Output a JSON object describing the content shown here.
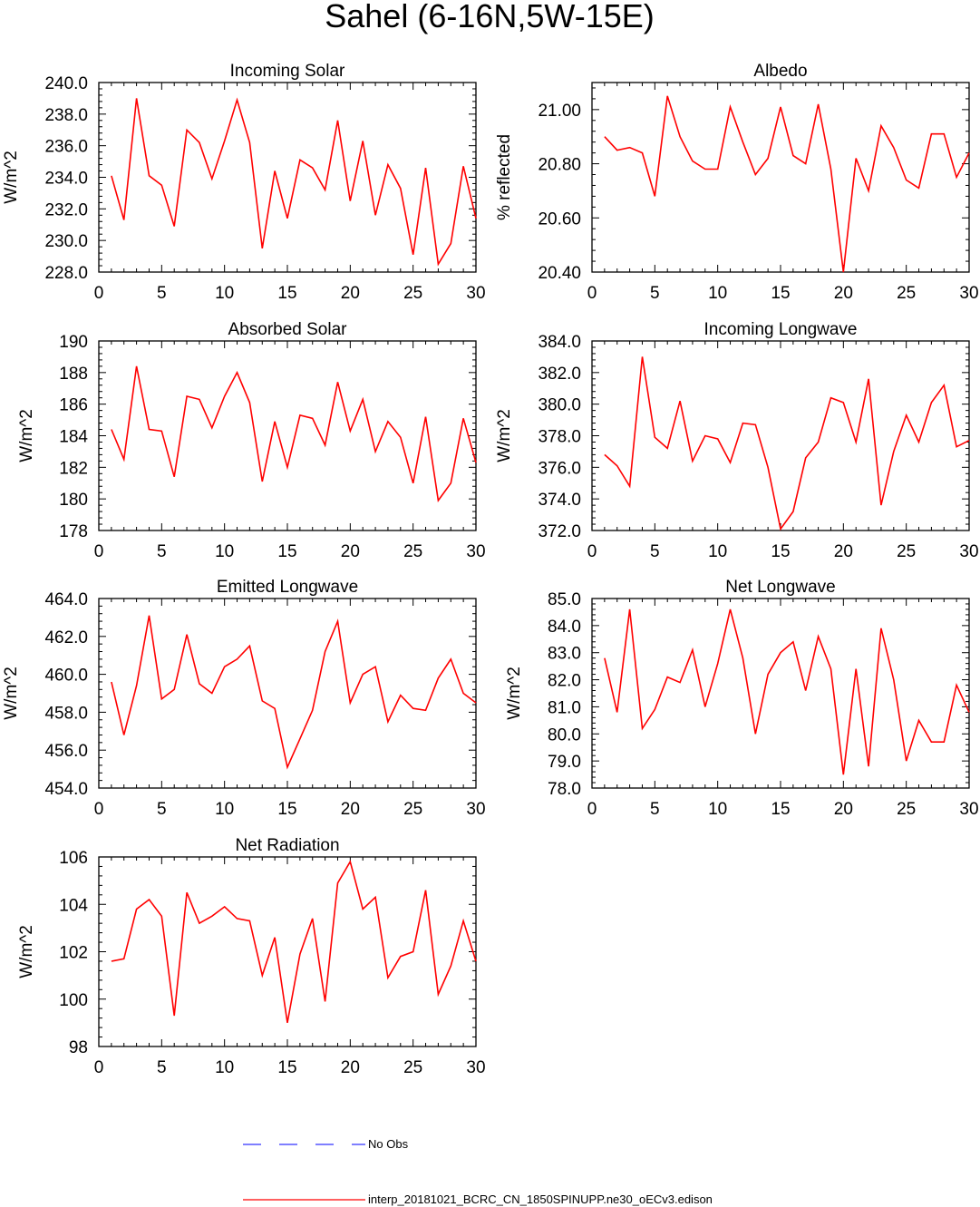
{
  "figure": {
    "title": "Sahel (6-16N,5W-15E)",
    "legend": [
      {
        "label": "No Obs",
        "color": "#3333ff",
        "style": "dashed"
      },
      {
        "label": "interp_20181021_BCRC_CN_1850SPINUPP.ne30_oECv3.edison",
        "color": "#ff0000",
        "style": "solid"
      }
    ]
  },
  "chart_data": [
    {
      "type": "line",
      "title": "Incoming Solar",
      "ylabel": "W/m^2",
      "xlim": [
        0,
        30
      ],
      "ylim": [
        228,
        240
      ],
      "xticks": [
        0,
        5,
        10,
        15,
        20,
        25,
        30
      ],
      "yticks": [
        "228.0",
        "230.0",
        "232.0",
        "234.0",
        "236.0",
        "238.0",
        "240.0"
      ],
      "series": [
        {
          "name": "interp_20181021_BCRC_CN_1850SPINUPP.ne30_oECv3.edison",
          "color": "#ff0000",
          "x": [
            1,
            2,
            3,
            4,
            5,
            6,
            7,
            8,
            9,
            10,
            11,
            12,
            13,
            14,
            15,
            16,
            17,
            18,
            19,
            20,
            21,
            22,
            23,
            24,
            25,
            26,
            27,
            28,
            29,
            30
          ],
          "values": [
            234.1,
            231.3,
            239.0,
            234.1,
            233.5,
            230.9,
            237.0,
            236.2,
            233.9,
            236.3,
            238.9,
            236.2,
            229.5,
            234.4,
            231.4,
            235.1,
            234.6,
            233.2,
            237.6,
            232.5,
            236.3,
            231.6,
            234.8,
            233.3,
            229.1,
            234.6,
            228.5,
            229.8,
            234.7,
            231.4
          ]
        }
      ]
    },
    {
      "type": "line",
      "title": "Albedo",
      "ylabel": "% reflected",
      "xlim": [
        0,
        30
      ],
      "ylim": [
        20.4,
        21.1
      ],
      "xticks": [
        0,
        5,
        10,
        15,
        20,
        25,
        30
      ],
      "yticks": [
        "20.40",
        "20.60",
        "20.80",
        "21.00"
      ],
      "series": [
        {
          "name": "interp_20181021_BCRC_CN_1850SPINUPP.ne30_oECv3.edison",
          "color": "#ff0000",
          "x": [
            1,
            2,
            3,
            4,
            5,
            6,
            7,
            8,
            9,
            10,
            11,
            12,
            13,
            14,
            15,
            16,
            17,
            18,
            19,
            20,
            21,
            22,
            23,
            24,
            25,
            26,
            27,
            28,
            29,
            30
          ],
          "values": [
            20.9,
            20.85,
            20.86,
            20.84,
            20.68,
            21.05,
            20.9,
            20.81,
            20.78,
            20.78,
            21.01,
            20.88,
            20.76,
            20.82,
            21.01,
            20.83,
            20.8,
            21.02,
            20.78,
            20.4,
            20.82,
            20.7,
            20.94,
            20.86,
            20.74,
            20.71,
            20.91,
            20.91,
            20.75,
            20.84
          ]
        }
      ]
    },
    {
      "type": "line",
      "title": "Absorbed Solar",
      "ylabel": "W/m^2",
      "xlim": [
        0,
        30
      ],
      "ylim": [
        178,
        190
      ],
      "xticks": [
        0,
        5,
        10,
        15,
        20,
        25,
        30
      ],
      "yticks": [
        "178",
        "180",
        "182",
        "184",
        "186",
        "188",
        "190"
      ],
      "series": [
        {
          "name": "interp_20181021_BCRC_CN_1850SPINUPP.ne30_oECv3.edison",
          "color": "#ff0000",
          "x": [
            1,
            2,
            3,
            4,
            5,
            6,
            7,
            8,
            9,
            10,
            11,
            12,
            13,
            14,
            15,
            16,
            17,
            18,
            19,
            20,
            21,
            22,
            23,
            24,
            25,
            26,
            27,
            28,
            29,
            30
          ],
          "values": [
            184.4,
            182.5,
            188.4,
            184.4,
            184.3,
            181.4,
            186.5,
            186.3,
            184.5,
            186.5,
            188.0,
            186.1,
            181.1,
            184.9,
            182.0,
            185.3,
            185.1,
            183.4,
            187.4,
            184.3,
            186.3,
            183.0,
            184.9,
            183.9,
            181.0,
            185.2,
            179.9,
            181.0,
            185.1,
            182.3
          ]
        }
      ]
    },
    {
      "type": "line",
      "title": "Incoming Longwave",
      "ylabel": "W/m^2",
      "xlim": [
        0,
        30
      ],
      "ylim": [
        372,
        384
      ],
      "xticks": [
        0,
        5,
        10,
        15,
        20,
        25,
        30
      ],
      "yticks": [
        "372.0",
        "374.0",
        "376.0",
        "378.0",
        "380.0",
        "382.0",
        "384.0"
      ],
      "series": [
        {
          "name": "interp_20181021_BCRC_CN_1850SPINUPP.ne30_oECv3.edison",
          "color": "#ff0000",
          "x": [
            1,
            2,
            3,
            4,
            5,
            6,
            7,
            8,
            9,
            10,
            11,
            12,
            13,
            14,
            15,
            16,
            17,
            18,
            19,
            20,
            21,
            22,
            23,
            24,
            25,
            26,
            27,
            28,
            29,
            30
          ],
          "values": [
            376.8,
            376.1,
            374.8,
            383.0,
            377.9,
            377.2,
            380.2,
            376.4,
            378.0,
            377.8,
            376.3,
            378.8,
            378.7,
            376.0,
            372.1,
            373.2,
            376.6,
            377.6,
            380.4,
            380.1,
            377.6,
            381.6,
            373.6,
            377.0,
            379.3,
            377.6,
            380.1,
            381.2,
            377.3,
            377.7
          ]
        }
      ]
    },
    {
      "type": "line",
      "title": "Emitted Longwave",
      "ylabel": "W/m^2",
      "xlim": [
        0,
        30
      ],
      "ylim": [
        454,
        464
      ],
      "xticks": [
        0,
        5,
        10,
        15,
        20,
        25,
        30
      ],
      "yticks": [
        "454.0",
        "456.0",
        "458.0",
        "460.0",
        "462.0",
        "464.0"
      ],
      "series": [
        {
          "name": "interp_20181021_BCRC_CN_1850SPINUPP.ne30_oECv3.edison",
          "color": "#ff0000",
          "x": [
            1,
            2,
            3,
            4,
            5,
            6,
            7,
            8,
            9,
            10,
            11,
            12,
            13,
            14,
            15,
            16,
            17,
            18,
            19,
            20,
            21,
            22,
            23,
            24,
            25,
            26,
            27,
            28,
            29,
            30
          ],
          "values": [
            459.6,
            456.8,
            459.4,
            463.1,
            458.7,
            459.2,
            462.1,
            459.5,
            459.0,
            460.4,
            460.8,
            461.5,
            458.6,
            458.2,
            455.1,
            456.6,
            458.1,
            461.2,
            462.8,
            458.5,
            460.0,
            460.4,
            457.5,
            458.9,
            458.2,
            458.1,
            459.8,
            460.8,
            459.0,
            458.5
          ]
        }
      ]
    },
    {
      "type": "line",
      "title": "Net Longwave",
      "ylabel": "W/m^2",
      "xlim": [
        0,
        30
      ],
      "ylim": [
        78,
        85
      ],
      "xticks": [
        0,
        5,
        10,
        15,
        20,
        25,
        30
      ],
      "yticks": [
        "78.0",
        "79.0",
        "80.0",
        "81.0",
        "82.0",
        "83.0",
        "84.0",
        "85.0"
      ],
      "series": [
        {
          "name": "interp_20181021_BCRC_CN_1850SPINUPP.ne30_oECv3.edison",
          "color": "#ff0000",
          "x": [
            1,
            2,
            3,
            4,
            5,
            6,
            7,
            8,
            9,
            10,
            11,
            12,
            13,
            14,
            15,
            16,
            17,
            18,
            19,
            20,
            21,
            22,
            23,
            24,
            25,
            26,
            27,
            28,
            29,
            30
          ],
          "values": [
            82.8,
            80.8,
            84.6,
            80.2,
            80.9,
            82.1,
            81.9,
            83.1,
            81.0,
            82.6,
            84.6,
            82.8,
            80.0,
            82.2,
            83.0,
            83.4,
            81.6,
            83.6,
            82.4,
            78.5,
            82.4,
            78.8,
            83.9,
            82.0,
            79.0,
            80.5,
            79.7,
            79.7,
            81.8,
            80.8
          ]
        }
      ]
    },
    {
      "type": "line",
      "title": "Net Radiation",
      "ylabel": "W/m^2",
      "xlim": [
        0,
        30
      ],
      "ylim": [
        98,
        106
      ],
      "xticks": [
        0,
        5,
        10,
        15,
        20,
        25,
        30
      ],
      "yticks": [
        "98",
        "100",
        "102",
        "104",
        "106"
      ],
      "series": [
        {
          "name": "interp_20181021_BCRC_CN_1850SPINUPP.ne30_oECv3.edison",
          "color": "#ff0000",
          "x": [
            1,
            2,
            3,
            4,
            5,
            6,
            7,
            8,
            9,
            10,
            11,
            12,
            13,
            14,
            15,
            16,
            17,
            18,
            19,
            20,
            21,
            22,
            23,
            24,
            25,
            26,
            27,
            28,
            29,
            30
          ],
          "values": [
            101.6,
            101.7,
            103.8,
            104.2,
            103.5,
            99.3,
            104.5,
            103.2,
            103.5,
            103.9,
            103.4,
            103.3,
            101.0,
            102.6,
            99.0,
            101.9,
            103.4,
            99.9,
            104.9,
            105.8,
            103.8,
            104.3,
            100.9,
            101.8,
            102.0,
            104.6,
            100.2,
            101.4,
            103.3,
            101.6
          ]
        }
      ]
    }
  ]
}
